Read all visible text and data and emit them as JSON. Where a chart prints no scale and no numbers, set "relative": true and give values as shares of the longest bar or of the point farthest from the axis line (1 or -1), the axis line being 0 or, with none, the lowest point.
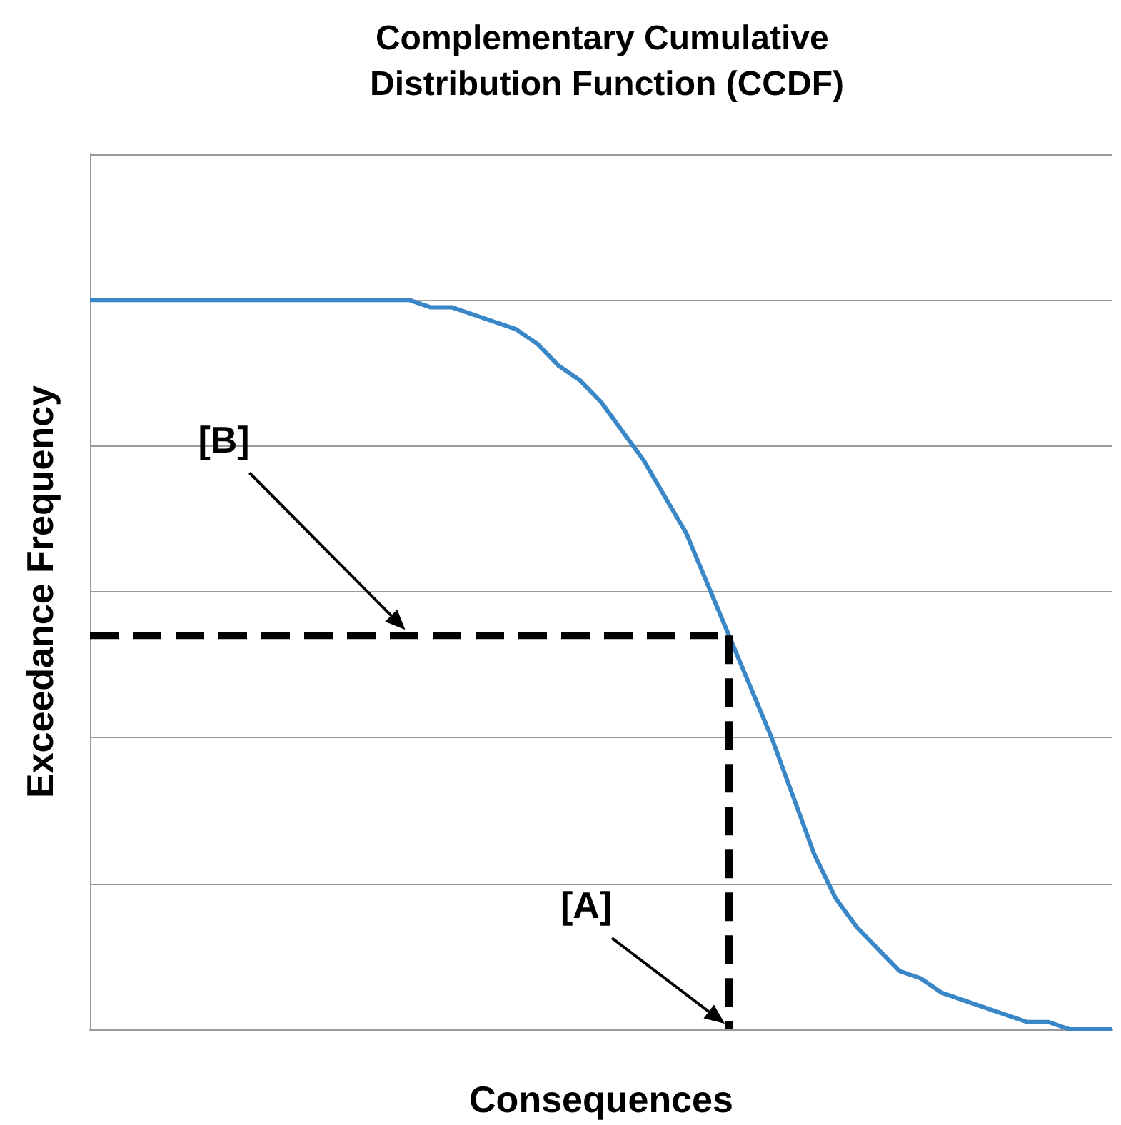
{
  "chart_data": {
    "type": "line",
    "title": "Complementary Cumulative Distribution Function (CCDF)",
    "xlabel": "Consequences",
    "ylabel": "Exceedance Frequency",
    "relative": true,
    "grid": "y",
    "categories": [
      null,
      null,
      null,
      null,
      null,
      null,
      null,
      null,
      null,
      null,
      null,
      null,
      null,
      null,
      null,
      null,
      null,
      null,
      null,
      null,
      null,
      null,
      null,
      null,
      null,
      null,
      null,
      null,
      null,
      null,
      null,
      null,
      null,
      null,
      null,
      null,
      null,
      null,
      null,
      null,
      null,
      null,
      null,
      null,
      null,
      null,
      null,
      null,
      null
    ],
    "series": [
      {
        "color": "#3a87c8",
        "values": [
          1,
          1,
          1,
          1,
          1,
          1,
          1,
          1,
          1,
          1,
          1,
          1,
          1,
          1,
          1,
          1,
          0.99,
          0.99,
          0.98,
          0.97,
          0.96,
          0.94,
          0.91,
          0.89,
          0.86,
          0.82,
          0.78,
          0.73,
          0.68,
          0.61,
          0.54,
          0.47,
          0.4,
          0.32,
          0.24,
          0.18,
          0.14,
          0.11,
          0.08,
          0.07,
          0.05,
          0.04,
          0.03,
          0.02,
          0.01,
          0.01,
          0,
          0,
          0
        ]
      },
      {
        "color": "#000000",
        "line_style": "dashed",
        "values": [
          0.54,
          0.54,
          0.54,
          0.54,
          0.54,
          0.54,
          0.54,
          0.54,
          0.54,
          0.54,
          0.54,
          0.54,
          0.54,
          0.54,
          0.54,
          0.54,
          0.54,
          0.54,
          0.54,
          0.54,
          0.54,
          0.54,
          0.54,
          0.54,
          0.54,
          0.54,
          0.54,
          0.54,
          0.54,
          0.54,
          0.54,
          null,
          null,
          null,
          null,
          null,
          null,
          null,
          null,
          null,
          null,
          null,
          null,
          null,
          null,
          null,
          null,
          null,
          null
        ]
      }
    ],
    "annotations": [
      "[B]",
      "[A]"
    ]
  }
}
